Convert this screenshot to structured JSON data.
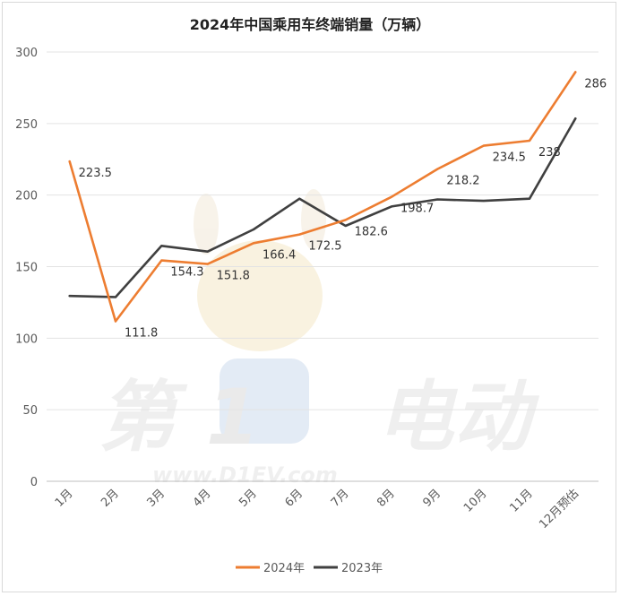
{
  "chart_data": {
    "type": "line",
    "title": "2024年中国乘用车终端销量（万辆）",
    "xlabel": "",
    "ylabel": "",
    "categories": [
      "1月",
      "2月",
      "3月",
      "4月",
      "5月",
      "6月",
      "7月",
      "8月",
      "9月",
      "10月",
      "11月",
      "12月预估"
    ],
    "yticks": [
      "0",
      "50",
      "100",
      "150",
      "200",
      "250",
      "300"
    ],
    "ylim": [
      0,
      300
    ],
    "grid": true,
    "legend_position": "bottom",
    "series": [
      {
        "name": "2024年",
        "color": "#ED7D31",
        "values": [
          223.5,
          111.8,
          154.3,
          151.8,
          166.4,
          172.5,
          182.6,
          198.7,
          218.2,
          234.5,
          238,
          286
        ],
        "labels": [
          "223.5",
          "111.8",
          "154.3",
          "151.8",
          "166.4",
          "172.5",
          "182.6",
          "198.7",
          "218.2",
          "234.5",
          "238",
          "286"
        ]
      },
      {
        "name": "2023年",
        "color": "#404040",
        "values": [
          129.5,
          128.7,
          164.5,
          160.5,
          176,
          197.5,
          178.5,
          192,
          197,
          196,
          197.5,
          253.5
        ]
      }
    ]
  },
  "watermark": {
    "logo_text": "第1电动",
    "url_text": "www.D1EV.com"
  }
}
